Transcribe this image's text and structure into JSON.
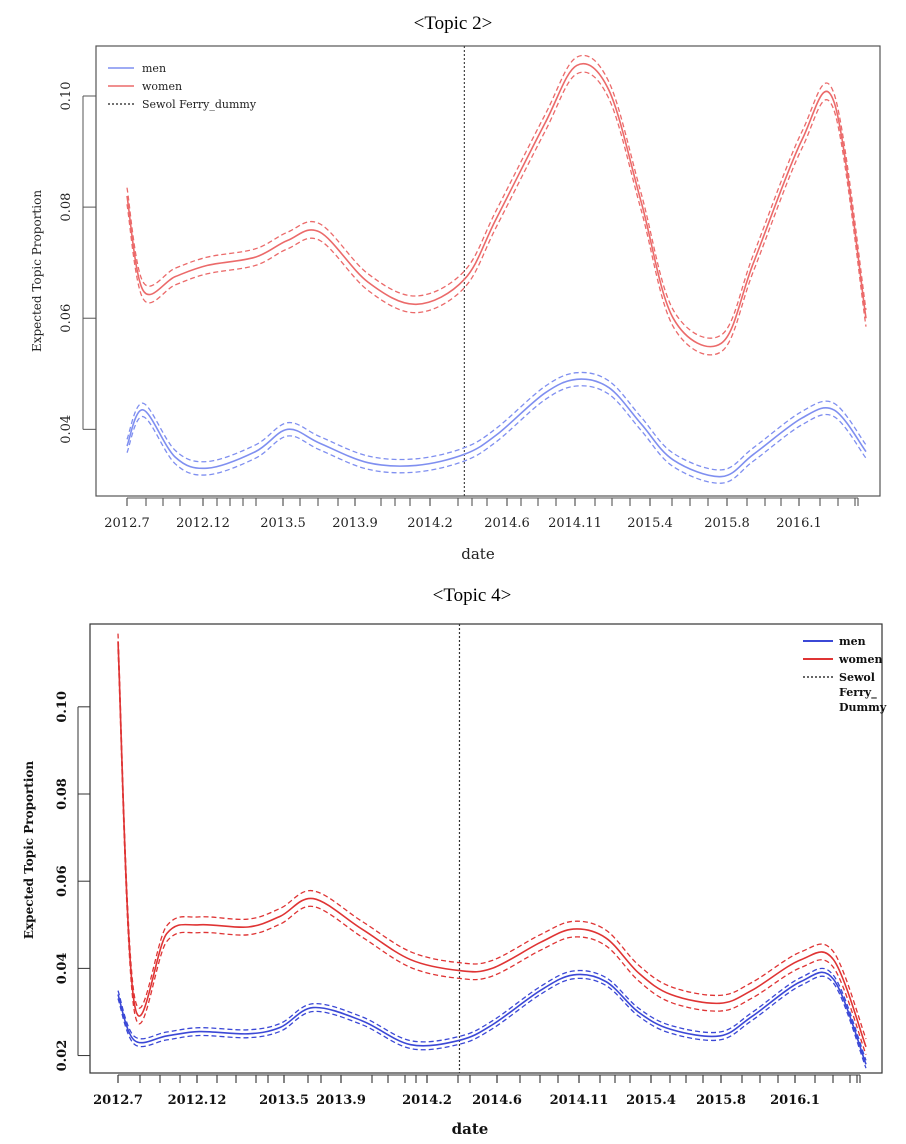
{
  "chart_data": [
    {
      "type": "line",
      "title": "<Topic 2>",
      "xlabel": "date",
      "ylabel": "Expected Topic Proportion",
      "x_tick_labels": [
        "2012.7",
        "2012.12",
        "2013.5",
        "2013.9",
        "2014.2",
        "2014.6",
        "2014.11",
        "2015.4",
        "2015.8",
        "2016.1"
      ],
      "yticks": [
        0.04,
        0.06,
        0.08,
        0.1
      ],
      "ylim": [
        0.028,
        0.109
      ],
      "legend": [
        "men",
        "women",
        "Sewol Ferry_dummy"
      ],
      "legend_position": "top-left",
      "vline_x": "2014.4",
      "colors": {
        "men": "#7f8ff0",
        "women": "#eb6a6a",
        "dummy": "#444444"
      },
      "series": [
        {
          "name": "men",
          "style": "solid with dashed confidence band",
          "ci_halfwidth": 0.0012,
          "x": [
            "2012.7",
            "2012.8",
            "2012.10",
            "2012.12",
            "2013.3",
            "2013.5",
            "2013.7",
            "2013.10",
            "2014.1",
            "2014.4",
            "2014.6",
            "2014.9",
            "2014.11",
            "2015.1",
            "2015.3",
            "2015.5",
            "2015.8",
            "2015.10",
            "2016.1",
            "2016.3",
            "2016.5"
          ],
          "values": [
            0.037,
            0.0435,
            0.035,
            0.033,
            0.036,
            0.04,
            0.0375,
            0.034,
            0.0335,
            0.0355,
            0.039,
            0.0465,
            0.049,
            0.0475,
            0.041,
            0.0345,
            0.0315,
            0.0355,
            0.042,
            0.0435,
            0.036
          ]
        },
        {
          "name": "women",
          "style": "solid with dashed confidence band",
          "ci_halfwidth": 0.0015,
          "x": [
            "2012.7",
            "2012.8",
            "2012.10",
            "2012.12",
            "2013.3",
            "2013.5",
            "2013.7",
            "2013.10",
            "2014.1",
            "2014.4",
            "2014.6",
            "2014.9",
            "2014.11",
            "2015.1",
            "2015.3",
            "2015.5",
            "2015.8",
            "2015.10",
            "2016.1",
            "2016.3",
            "2016.5"
          ],
          "values": [
            0.082,
            0.065,
            0.0675,
            0.0695,
            0.071,
            0.074,
            0.0755,
            0.0665,
            0.0625,
            0.067,
            0.078,
            0.095,
            0.1055,
            0.101,
            0.081,
            0.06,
            0.0555,
            0.07,
            0.092,
            0.099,
            0.06
          ]
        }
      ]
    },
    {
      "type": "line",
      "title": "<Topic 4>",
      "xlabel": "date",
      "ylabel": "Expected Topic Proportion",
      "x_tick_labels": [
        "2012.7",
        "2012.12",
        "2013.5",
        "2013.9",
        "2014.2",
        "2014.6",
        "2014.11",
        "2015.4",
        "2015.8",
        "2016.1"
      ],
      "yticks": [
        0.02,
        0.04,
        0.06,
        0.08,
        0.1
      ],
      "ylim": [
        0.016,
        0.119
      ],
      "legend": [
        "men",
        "women",
        "Sewol Ferry_ Dummy"
      ],
      "legend_position": "top-right",
      "vline_x": "2014.4",
      "colors": {
        "men": "#3b48d6",
        "women": "#df3434",
        "dummy": "#333333"
      },
      "series": [
        {
          "name": "men",
          "style": "solid with dashed confidence band",
          "ci_halfwidth": 0.0009,
          "x": [
            "2012.7",
            "2012.8",
            "2012.10",
            "2012.12",
            "2013.3",
            "2013.5",
            "2013.7",
            "2013.10",
            "2014.1",
            "2014.4",
            "2014.6",
            "2014.9",
            "2014.11",
            "2015.1",
            "2015.3",
            "2015.5",
            "2015.8",
            "2015.10",
            "2016.1",
            "2016.3",
            "2016.5"
          ],
          "values": [
            0.034,
            0.0235,
            0.0245,
            0.0255,
            0.025,
            0.0265,
            0.031,
            0.028,
            0.0225,
            0.0235,
            0.027,
            0.035,
            0.0385,
            0.037,
            0.03,
            0.026,
            0.0245,
            0.029,
            0.037,
            0.0375,
            0.018
          ]
        },
        {
          "name": "women",
          "style": "solid with dashed confidence band",
          "ci_halfwidth": 0.0018,
          "x": [
            "2012.7",
            "2012.8",
            "2012.10",
            "2012.12",
            "2013.3",
            "2013.5",
            "2013.7",
            "2013.10",
            "2014.1",
            "2014.4",
            "2014.6",
            "2014.9",
            "2014.11",
            "2015.1",
            "2015.3",
            "2015.5",
            "2015.8",
            "2015.10",
            "2016.1",
            "2016.3",
            "2016.5"
          ],
          "values": [
            0.115,
            0.032,
            0.048,
            0.05,
            0.0495,
            0.052,
            0.056,
            0.049,
            0.042,
            0.0395,
            0.04,
            0.046,
            0.049,
            0.047,
            0.039,
            0.034,
            0.032,
            0.035,
            0.042,
            0.042,
            0.022
          ]
        }
      ]
    }
  ]
}
